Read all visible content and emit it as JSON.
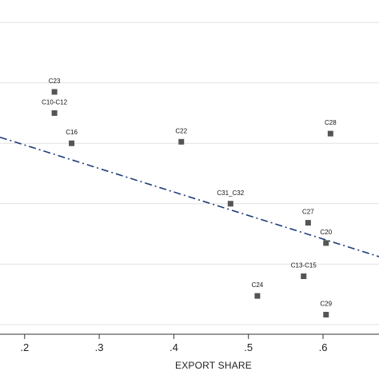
{
  "chart_data": {
    "type": "scatter",
    "xlabel": "EXPORT SHARE",
    "ylabel": "",
    "xlim": [
      0.167,
      0.675
    ],
    "ylim": [
      0,
      1
    ],
    "x_ticks": [
      0.2,
      0.3,
      0.4,
      0.5,
      0.6
    ],
    "x_tick_labels": [
      ".2",
      ".3",
      ".4",
      ".5",
      ".6"
    ],
    "y_gridlines": [
      0.0,
      0.2,
      0.4,
      0.6,
      0.8,
      1.0
    ],
    "grid": "horizontal",
    "points": [
      {
        "label": "C23",
        "x": 0.24,
        "y": 0.77
      },
      {
        "label": "C10-C12",
        "x": 0.24,
        "y": 0.7
      },
      {
        "label": "C16",
        "x": 0.263,
        "y": 0.6
      },
      {
        "label": "C22",
        "x": 0.41,
        "y": 0.605
      },
      {
        "label": "C28",
        "x": 0.61,
        "y": 0.632
      },
      {
        "label": "C31_C32",
        "x": 0.476,
        "y": 0.4
      },
      {
        "label": "C27",
        "x": 0.58,
        "y": 0.337
      },
      {
        "label": "C20",
        "x": 0.604,
        "y": 0.27
      },
      {
        "label": "C13-C15",
        "x": 0.574,
        "y": 0.16
      },
      {
        "label": "C24",
        "x": 0.512,
        "y": 0.095
      },
      {
        "label": "C29",
        "x": 0.604,
        "y": 0.033
      }
    ],
    "fit_line": {
      "x": [
        0.167,
        0.675
      ],
      "y": [
        0.62,
        0.225
      ],
      "color": "#1f3d7a",
      "style": "dash-dot"
    },
    "marker_color": "#555555"
  }
}
